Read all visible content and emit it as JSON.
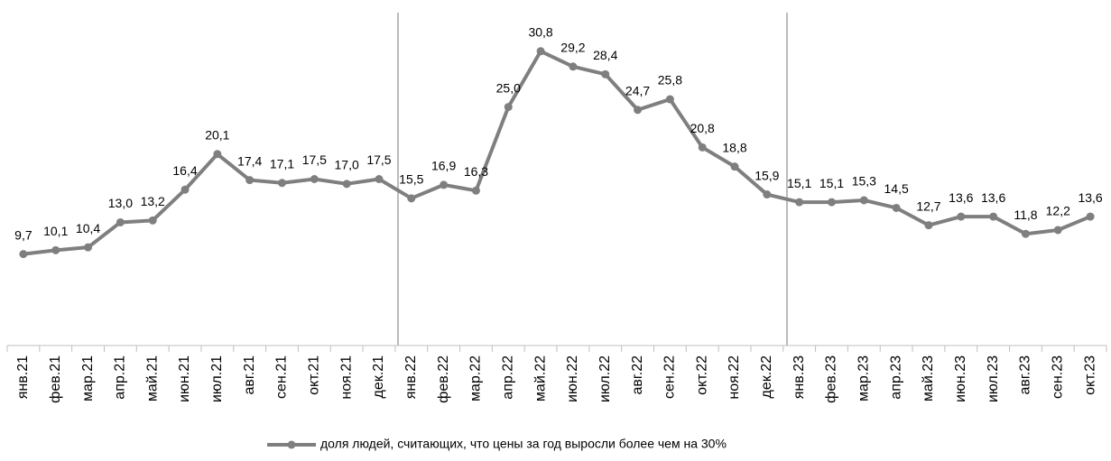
{
  "chart_data": {
    "type": "line",
    "categories": [
      "янв.21",
      "фев.21",
      "мар.21",
      "апр.21",
      "май.21",
      "июн.21",
      "июл.21",
      "авг.21",
      "сен.21",
      "окт.21",
      "ноя.21",
      "дек.21",
      "янв.22",
      "фев.22",
      "мар.22",
      "апр.22",
      "май.22",
      "июн.22",
      "июл.22",
      "авг.22",
      "сен.22",
      "окт.22",
      "ноя.22",
      "дек.22",
      "янв.23",
      "фев.23",
      "мар.23",
      "апр.23",
      "май.23",
      "июн.23",
      "июл.23",
      "авг.23",
      "сен.23",
      "окт.23"
    ],
    "series": [
      {
        "name": "доля людей, считающих, что цены за год выросли более чем на 30%",
        "color": "#7f7f7f",
        "values": [
          9.7,
          10.1,
          10.4,
          13.0,
          13.2,
          16.4,
          20.1,
          17.4,
          17.1,
          17.5,
          17.0,
          17.5,
          15.5,
          16.9,
          16.3,
          25.0,
          30.8,
          29.2,
          28.4,
          24.7,
          25.8,
          20.8,
          18.8,
          15.9,
          15.1,
          15.1,
          15.3,
          14.5,
          12.7,
          13.6,
          13.6,
          11.8,
          12.2,
          13.6
        ],
        "value_labels": [
          "9,7",
          "10,1",
          "10,4",
          "13,0",
          "13,2",
          "16,4",
          "20,1",
          "17,4",
          "17,1",
          "17,5",
          "17,0",
          "17,5",
          "15,5",
          "16,9",
          "16,3",
          "25,0",
          "30,8",
          "29,2",
          "28,4",
          "24,7",
          "25,8",
          "20,8",
          "18,8",
          "15,9",
          "15,1",
          "15,1",
          "15,3",
          "14,5",
          "12,7",
          "13,6",
          "13,6",
          "11,8",
          "12,2",
          "13,6"
        ]
      }
    ],
    "ylim": [
      0,
      35
    ],
    "legend": "bottom"
  }
}
